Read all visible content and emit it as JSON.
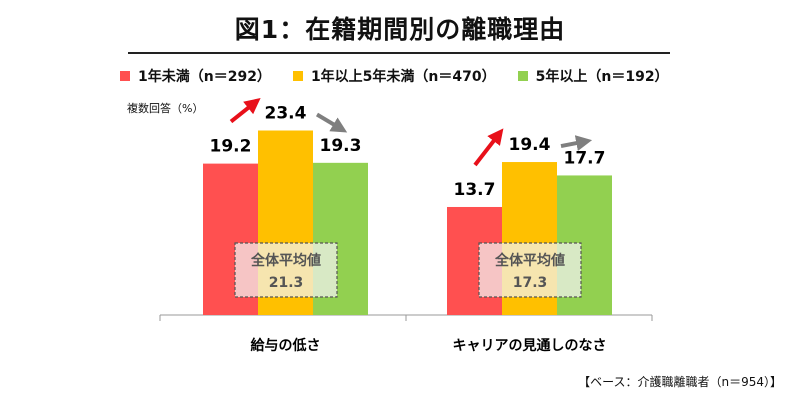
{
  "title": "図1：在籍期間別の離職理由",
  "ylabel": "複数回答（%）",
  "footnote": "【ベース：介護職離職者（n＝954）】",
  "chart_data": {
    "type": "bar",
    "categories": [
      "給与の低さ",
      "キャリアの見通しのなさ"
    ],
    "series": [
      {
        "name": "1年未満（n＝292）",
        "color": "#ff5050",
        "values": [
          19.2,
          13.7
        ]
      },
      {
        "name": "1年以上5年未満（n＝470）",
        "color": "#ffc000",
        "values": [
          23.4,
          19.4
        ]
      },
      {
        "name": "5年以上（n＝192）",
        "color": "#92d050",
        "values": [
          19.3,
          17.7
        ]
      }
    ],
    "averages": [
      {
        "label": "全体平均値",
        "value": "21.3"
      },
      {
        "label": "全体平均値",
        "value": "17.3"
      }
    ],
    "ylim": [
      0,
      26
    ],
    "grid": false,
    "legend_position": "top"
  }
}
